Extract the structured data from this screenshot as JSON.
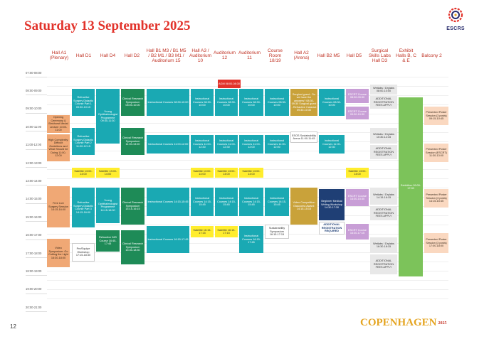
{
  "title": "Saturday 13 September 2025",
  "logo": {
    "text": "ESCRS"
  },
  "page_number": "12",
  "footer": {
    "brand": "COPENHAGEN",
    "year": "2025"
  },
  "columns": [
    "Hall A1 (Plenary)",
    "Hall D1",
    "Hall D4",
    "Hall D2",
    "Hall B1 M3 / B1 M5 / B2 M1 / B3 M1 / Auditorium 15",
    "Hall A3 / Auditorium 10",
    "Auditorium 12",
    "Auditorium 11",
    "Course Room 18/19",
    "Hall A2 (Arena)",
    "Hall B2 M5",
    "Hall D5",
    "Surgical Skills Labs Hall D3",
    "Exhibit Halls B, C & E",
    "Balcony 2"
  ],
  "times": [
    "07:00-08:00",
    "08:00-09:00",
    "09:00-10:00",
    "10:00-11:00",
    "11:00-12:00",
    "12:00-13:00",
    "13:00-14:00",
    "14:00-15:00",
    "15:00-16:00",
    "16:00-17:00",
    "17:00-18:00",
    "18:00-19:00",
    "19:00-20:00",
    "20:00-21:00"
  ],
  "events": {
    "agm": "AGM 08:00-08:30",
    "refractive1": "Refractive Surgery Didactic Course Part 1 09:30-10:15",
    "young1": "Young Ophthalmologist Programme 09:30-11:30",
    "clin1": "Clinical Research Symposium 08:00-10:00",
    "ic1": "Instructional Courses 08:30-10:00",
    "ic1b": "Instructional Courses 08:30-10:00",
    "ic1c": "Instructional Courses 08:30-10:00",
    "ic1d": "Instructional Courses 08:30-10:00",
    "ic1e": "Instructional Courses 08:30-10:00",
    "surg_guest": "Surgical guest - Do we have the answers? 08:30-09:30 Surgical guest - Refractive Cataract 09:30-10:30",
    "ic1f": "Instructional Courses 08:30-10:00",
    "escrt1": "ESCRT Course 08:30-09:30",
    "escrt2": "ESCRT Course 09:30-10:30",
    "wetlabs1": "Wetlabs / Drylabs 08:00-10:00",
    "addreg1": "ADDITIONAL REGISTRATION FEES APPLY",
    "opening": "Opening Ceremony & Binkhorst Medal Lecture 10:00-11:00",
    "high_comp": "High Complexity: Difficult Guidelines and What Should be Doing 11:00-12:00",
    "refractive2": "Refractive Surgery Didactic Course Part 2 11:00-12:15",
    "clin2": "Clinical Research Symposium 11:00-13:00",
    "ic2": "Instructional Courses 11:00-12:00",
    "ic2b": "Instructional Courses 11:00-12:30",
    "ic2c": "Instructional Courses 11:00-12:30",
    "ic2d": "Instructional Courses 11:00-12:00",
    "ic2e": "Instructional Courses 11:00-12:00",
    "esos": "ESOS Sustainability Arena 11:00-11:45",
    "ic2f": "Instructional Courses 11:00-12:30",
    "wetlabs2": "Wetlabs / Drylabs 10:30-12:15",
    "addreg2": "ADDITIONAL REGISTRATION FEES APPLY",
    "exhibition": "Exhibition 09:00-17:00",
    "poster1": "Presented Poster Session (3 posts) 09:15-10:45",
    "poster2": "Presented Poster Session (ESCRT) 11:30-13:00",
    "sat1": "Satellite 13:00-14:00",
    "sat2": "Satellite 13:00-14:00",
    "sat3": "Satellite 13:00-14:00",
    "sat4": "Satellite 13:00-14:00",
    "sat5": "Satellite 13:00-14:00",
    "sat6": "Satellite 13:00-14:00",
    "free_live": "Free Live Surgery Session 14:15-16:00",
    "refractive3": "Refractive Surgery Didactic Course Part 3 14:15-16:00",
    "young2": "Young Ophthalmologist Programme 14:15-16:00",
    "clin3": "Clinical Research Symposium 14:15-16:15",
    "ic3": "Instructional Courses 14:15-15:45",
    "ic3b": "Instructional Courses 14:15-15:45",
    "ic3c": "Instructional Courses 14:15-15:45",
    "ic3d": "Instructional Courses 14:15-15:45",
    "ic3e": "Instructional Courses 14:15-15:45",
    "video_comp": "Video Competition Glaucoma Award: 14:15-15:15",
    "beginner": "Beginner Medical Writing Workshop 14:30-17:30",
    "addreg_blue": "ADDITIONAL REGISTRATION REQUIRED",
    "escrt3": "ESCRT Course 14:30-15:30",
    "escrt4": "ESCRT Course 16:30-17:15",
    "wetlabs3": "Wetlabs / Drylabs 14:15-16:15",
    "addreg3": "ADDITIONAL REGISTRATION FEES APPLY",
    "poster3": "Presented Poster Session (3 posts) 14:15-15:45",
    "video_symp": "Video Symposium: Go Cutting the Light 16:30-18:00",
    "refractive_eye": "Refractive IMS Course 16:45-17:45",
    "pre_equip": "Pre/Equipe Workshop 17:15-18:30",
    "clin4": "Clinical Research Symposium 16:30-18:30",
    "ic4": "Instructional Courses 16:15-17:45",
    "sat7": "Satellite 16:15-17:15",
    "sat8": "Satellite 16:15-17:15",
    "ic4b": "Instructional Courses 16:15-17:45",
    "sustain": "Sustainability Symposium 16:15-17:15",
    "wetlabs4": "Wetlabs / Drylabs 16:30-18:15",
    "addreg4": "ADDITIONAL REGISTRATION FEES APPLY",
    "poster4": "Presented Poster Session (3 posts) 17:00-18:00"
  }
}
